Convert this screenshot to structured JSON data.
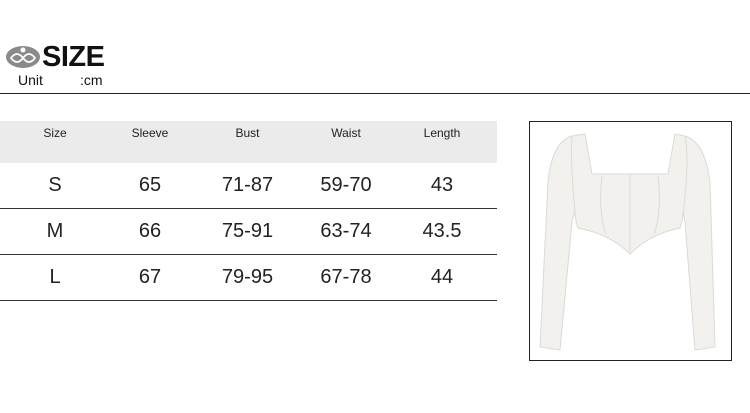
{
  "header": {
    "title": "SIZE",
    "unit_label": "Unit",
    "unit_value": ":cm"
  },
  "table": {
    "columns": [
      "Size",
      "Sleeve",
      "Bust",
      "Waist",
      "Length"
    ],
    "rows": [
      [
        "S",
        "65",
        "71-87",
        "59-70",
        "43"
      ],
      [
        "M",
        "66",
        "75-91",
        "63-74",
        "43.5"
      ],
      [
        "L",
        "67",
        "79-95",
        "67-78",
        "44"
      ]
    ]
  },
  "product_image": {
    "icon": "white-corset-long-sleeve-top"
  },
  "colors": {
    "header_bg": "#ebebeb",
    "text": "#222222",
    "logo": "#8a8a8a"
  }
}
